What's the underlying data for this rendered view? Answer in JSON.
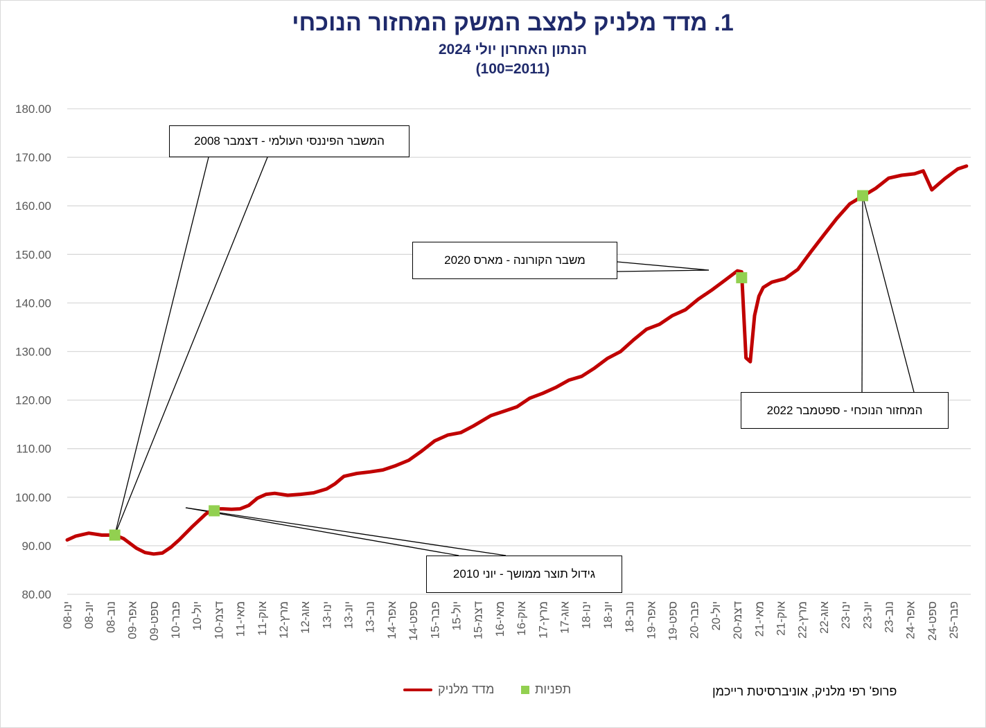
{
  "chart_data": {
    "type": "line",
    "title": "1. מדד מלניק למצב המשק המחזור הנוכחי",
    "subtitle_1": "הנתון האחרון יולי 2024",
    "subtitle_2": "(100=2011)",
    "ylim": [
      80,
      180
    ],
    "y_ticks": [
      "80.00",
      "90.00",
      "100.00",
      "110.00",
      "120.00",
      "130.00",
      "140.00",
      "150.00",
      "160.00",
      "170.00",
      "180.00"
    ],
    "x_start": "2008-01",
    "x_end": "2025-06",
    "x_ticks": [
      {
        "date": "2008-01",
        "label": "ינו-08"
      },
      {
        "date": "2008-06",
        "label": "יונ-08"
      },
      {
        "date": "2008-11",
        "label": "נוב-08"
      },
      {
        "date": "2009-04",
        "label": "אפר-09"
      },
      {
        "date": "2009-09",
        "label": "ספט-09"
      },
      {
        "date": "2010-02",
        "label": "פבר-10"
      },
      {
        "date": "2010-07",
        "label": "יול-10"
      },
      {
        "date": "2010-12",
        "label": "דצמ-10"
      },
      {
        "date": "2011-05",
        "label": "מאי-11"
      },
      {
        "date": "2011-10",
        "label": "אוק-11"
      },
      {
        "date": "2012-03",
        "label": "מרץ-12"
      },
      {
        "date": "2012-08",
        "label": "אוג-12"
      },
      {
        "date": "2013-01",
        "label": "ינו-13"
      },
      {
        "date": "2013-06",
        "label": "יונ-13"
      },
      {
        "date": "2013-11",
        "label": "נוב-13"
      },
      {
        "date": "2014-04",
        "label": "אפר-14"
      },
      {
        "date": "2014-09",
        "label": "ספט-14"
      },
      {
        "date": "2015-02",
        "label": "פבר-15"
      },
      {
        "date": "2015-07",
        "label": "יול-15"
      },
      {
        "date": "2015-12",
        "label": "דצמ-15"
      },
      {
        "date": "2016-05",
        "label": "מאי-16"
      },
      {
        "date": "2016-10",
        "label": "אוק-16"
      },
      {
        "date": "2017-03",
        "label": "מרץ-17"
      },
      {
        "date": "2017-08",
        "label": "אוג-17"
      },
      {
        "date": "2018-01",
        "label": "ינו-18"
      },
      {
        "date": "2018-06",
        "label": "יונ-18"
      },
      {
        "date": "2018-11",
        "label": "נוב-18"
      },
      {
        "date": "2019-04",
        "label": "אפר-19"
      },
      {
        "date": "2019-09",
        "label": "ספט-19"
      },
      {
        "date": "2020-02",
        "label": "פבר-20"
      },
      {
        "date": "2020-07",
        "label": "יול-20"
      },
      {
        "date": "2020-12",
        "label": "דצמ-20"
      },
      {
        "date": "2021-05",
        "label": "מאי-21"
      },
      {
        "date": "2021-10",
        "label": "אוק-21"
      },
      {
        "date": "2022-03",
        "label": "מרץ-22"
      },
      {
        "date": "2022-08",
        "label": "אוג-22"
      },
      {
        "date": "2023-01",
        "label": "ינו-23"
      },
      {
        "date": "2023-06",
        "label": "יונ-23"
      },
      {
        "date": "2023-11",
        "label": "נוב-23"
      },
      {
        "date": "2024-04",
        "label": "אפר-24"
      },
      {
        "date": "2024-09",
        "label": "ספט-24"
      },
      {
        "date": "2025-02",
        "label": "פבר-25"
      }
    ],
    "series": [
      {
        "name": "מדד מלניק",
        "color": "#c00000",
        "points": [
          [
            "2008-01",
            91.2
          ],
          [
            "2008-03",
            92.0
          ],
          [
            "2008-06",
            92.6
          ],
          [
            "2008-09",
            92.2
          ],
          [
            "2008-12",
            92.2
          ],
          [
            "2009-02",
            91.5
          ],
          [
            "2009-05",
            89.5
          ],
          [
            "2009-07",
            88.6
          ],
          [
            "2009-09",
            88.3
          ],
          [
            "2009-11",
            88.5
          ],
          [
            "2010-01",
            89.7
          ],
          [
            "2010-03",
            91.3
          ],
          [
            "2010-06",
            94.0
          ],
          [
            "2010-09",
            96.5
          ],
          [
            "2010-11",
            97.6
          ],
          [
            "2011-01",
            97.6
          ],
          [
            "2011-03",
            97.5
          ],
          [
            "2011-05",
            97.6
          ],
          [
            "2011-07",
            98.3
          ],
          [
            "2011-09",
            99.8
          ],
          [
            "2011-11",
            100.6
          ],
          [
            "2012-01",
            100.8
          ],
          [
            "2012-04",
            100.4
          ],
          [
            "2012-07",
            100.6
          ],
          [
            "2012-10",
            100.9
          ],
          [
            "2013-01",
            101.7
          ],
          [
            "2013-03",
            102.8
          ],
          [
            "2013-05",
            104.3
          ],
          [
            "2013-08",
            104.9
          ],
          [
            "2013-11",
            105.2
          ],
          [
            "2014-02",
            105.6
          ],
          [
            "2014-05",
            106.5
          ],
          [
            "2014-08",
            107.6
          ],
          [
            "2014-11",
            109.5
          ],
          [
            "2015-02",
            111.6
          ],
          [
            "2015-05",
            112.8
          ],
          [
            "2015-08",
            113.3
          ],
          [
            "2015-11",
            114.7
          ],
          [
            "2016-03",
            116.8
          ],
          [
            "2016-06",
            117.7
          ],
          [
            "2016-09",
            118.6
          ],
          [
            "2016-12",
            120.4
          ],
          [
            "2017-03",
            121.4
          ],
          [
            "2017-06",
            122.6
          ],
          [
            "2017-09",
            124.1
          ],
          [
            "2017-12",
            124.9
          ],
          [
            "2018-03",
            126.6
          ],
          [
            "2018-06",
            128.6
          ],
          [
            "2018-09",
            130.0
          ],
          [
            "2018-12",
            132.4
          ],
          [
            "2019-03",
            134.6
          ],
          [
            "2019-06",
            135.6
          ],
          [
            "2019-09",
            137.4
          ],
          [
            "2019-12",
            138.6
          ],
          [
            "2020-03",
            140.8
          ],
          [
            "2020-06",
            142.6
          ],
          [
            "2020-09",
            144.6
          ],
          [
            "2020-12",
            146.6
          ],
          [
            "2021-01",
            146.4
          ],
          [
            "2021-02",
            128.7
          ],
          [
            "2021-03",
            127.9
          ],
          [
            "2021-04",
            137.4
          ],
          [
            "2021-05",
            141.4
          ],
          [
            "2021-06",
            143.2
          ],
          [
            "2021-08",
            144.3
          ],
          [
            "2021-11",
            145.0
          ],
          [
            "2022-02",
            146.9
          ],
          [
            "2022-05",
            150.5
          ],
          [
            "2022-08",
            154.0
          ],
          [
            "2022-11",
            157.4
          ],
          [
            "2023-02",
            160.4
          ],
          [
            "2023-05",
            162.0
          ],
          [
            "2023-08",
            163.6
          ],
          [
            "2023-11",
            165.7
          ],
          [
            "2024-02",
            166.3
          ],
          [
            "2024-05",
            166.6
          ],
          [
            "2024-07",
            167.2
          ],
          [
            "2024-09",
            163.3
          ],
          [
            "2024-12",
            165.6
          ],
          [
            "2025-03",
            167.6
          ],
          [
            "2025-05",
            168.2
          ]
        ]
      },
      {
        "name": "תפניות",
        "color": "#92d050",
        "points": [
          [
            "2008-12",
            92.2
          ],
          [
            "2010-11",
            97.2
          ],
          [
            "2021-01",
            145.2
          ],
          [
            "2023-05",
            162.1
          ]
        ]
      }
    ],
    "annotations": [
      {
        "text": "המשבר הפיננסי העולמי - דצמבר 2008"
      },
      {
        "text": "גידול תוצר ממושך - יוני 2010"
      },
      {
        "text": "משבר הקורונה - מארס 2020"
      },
      {
        "text": "המחזור הנוכחי - ספטמבר 2022"
      }
    ],
    "legend_position": "bottom-center"
  },
  "credit": "פרופ' רפי מלניק, אוניברסיטת רייכמן"
}
